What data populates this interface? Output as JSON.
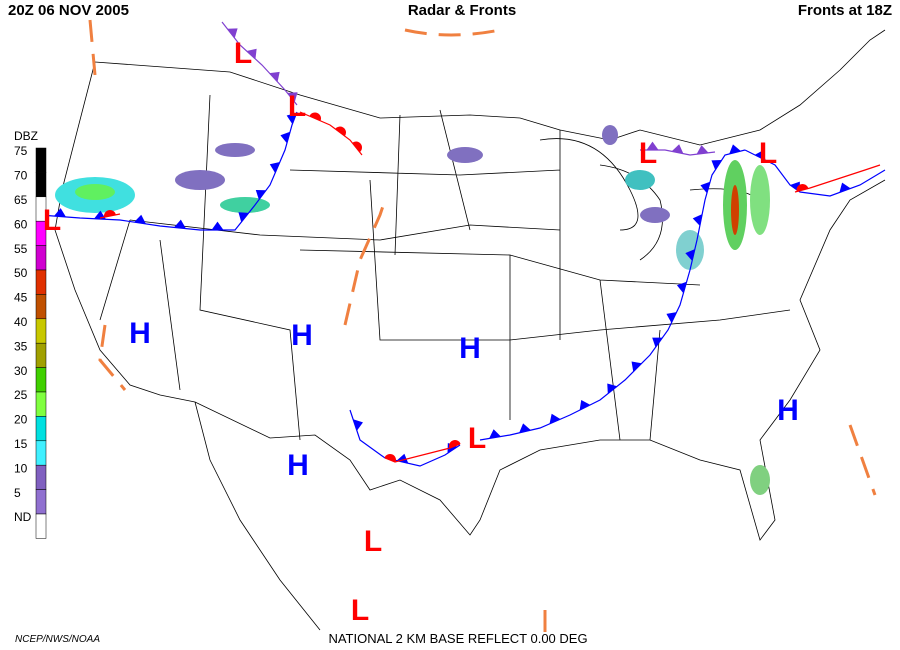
{
  "header": {
    "time": "20Z  06 NOV  2005",
    "title": "Radar & Fronts",
    "fronts_time": "Fronts at 18Z"
  },
  "legend": {
    "title": "DBZ",
    "levels": [
      {
        "label": "75",
        "color": "#000000"
      },
      {
        "label": "70",
        "color": "#000000"
      },
      {
        "label": "65",
        "color": "#ffffff"
      },
      {
        "label": "60",
        "color": "#ff00ff"
      },
      {
        "label": "55",
        "color": "#d000d0"
      },
      {
        "label": "50",
        "color": "#e03000"
      },
      {
        "label": "45",
        "color": "#c05000"
      },
      {
        "label": "40",
        "color": "#c8c800"
      },
      {
        "label": "35",
        "color": "#a0a000"
      },
      {
        "label": "30",
        "color": "#40d000"
      },
      {
        "label": "25",
        "color": "#80ff40"
      },
      {
        "label": "20",
        "color": "#00e0e0"
      },
      {
        "label": "15",
        "color": "#40f0ff"
      },
      {
        "label": "10",
        "color": "#8060c0"
      },
      {
        "label": "5",
        "color": "#9070d0"
      },
      {
        "label": "ND",
        "color": "#ffffff"
      }
    ]
  },
  "pressure_centers": [
    {
      "label": "L",
      "color": "#ff0000"
    },
    {
      "label": "L",
      "color": "#ff0000"
    },
    {
      "label": "L",
      "color": "#ff0000"
    },
    {
      "label": "L",
      "color": "#ff0000"
    },
    {
      "label": "L",
      "color": "#ff0000"
    },
    {
      "label": "L",
      "color": "#ff0000"
    },
    {
      "label": "L",
      "color": "#ff0000"
    },
    {
      "label": "L",
      "color": "#ff0000"
    },
    {
      "label": "H",
      "color": "#0000ff"
    },
    {
      "label": "H",
      "color": "#0000ff"
    },
    {
      "label": "H",
      "color": "#0000ff"
    },
    {
      "label": "H",
      "color": "#0000ff"
    },
    {
      "label": "H",
      "color": "#0000ff"
    }
  ],
  "footer": {
    "credit": "NCEP/NWS/NOAA",
    "product": "NATIONAL 2 KM BASE REFLECT 0.00 DEG"
  }
}
